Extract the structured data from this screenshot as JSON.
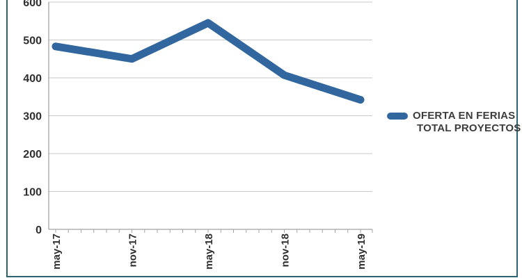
{
  "chart_data": {
    "type": "line",
    "title": "",
    "xlabel": "",
    "ylabel": "",
    "categories": [
      "may-17",
      "nov-17",
      "may-18",
      "nov-18",
      "may-19"
    ],
    "series": [
      {
        "name": "OFERTA EN FERIAS TOTAL PROYECTOS",
        "values": [
          483,
          450,
          545,
          407,
          342
        ]
      }
    ],
    "ylim": [
      0,
      600
    ],
    "y_ticks": [
      0,
      100,
      200,
      300,
      400,
      500,
      600
    ],
    "grid": "horizontal",
    "legend_position": "right",
    "x_minor_ticks_per_interval": 6,
    "line_color": "#31679E",
    "grid_color": "#C9C9C9",
    "axis_color": "#A3A3A3",
    "tick_label_color": "#2E2E2E"
  },
  "legend": {
    "line1": "OFERTA EN FERIAS",
    "line2": "TOTAL PROYECTOS",
    "marker_color": "#31679E",
    "text_color": "#3C3C3C"
  },
  "frame": {
    "border_color": "#2B6370"
  }
}
